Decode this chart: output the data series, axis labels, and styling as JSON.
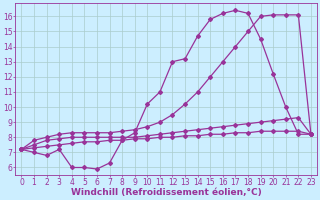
{
  "bg_color": "#cceeff",
  "line_color": "#993399",
  "grid_color": "#aacccc",
  "xlabel": "Windchill (Refroidissement éolien,°C)",
  "xlabel_fontsize": 6.5,
  "tick_fontsize": 5.5,
  "xlim": [
    -0.5,
    23.5
  ],
  "ylim": [
    5.5,
    16.9
  ],
  "yticks": [
    6,
    7,
    8,
    9,
    10,
    11,
    12,
    13,
    14,
    15,
    16
  ],
  "xticks": [
    0,
    1,
    2,
    3,
    4,
    5,
    6,
    7,
    8,
    9,
    10,
    11,
    12,
    13,
    14,
    15,
    16,
    17,
    18,
    19,
    20,
    21,
    22,
    23
  ],
  "line1_x": [
    0,
    1,
    2,
    3,
    4,
    5,
    6,
    7,
    8,
    9,
    10,
    11,
    12,
    13,
    14,
    15,
    16,
    17,
    18,
    19,
    20,
    21,
    22,
    23
  ],
  "line1_y": [
    7.2,
    7.0,
    6.8,
    7.2,
    6.0,
    6.0,
    5.9,
    6.3,
    7.8,
    8.3,
    10.2,
    11.0,
    13.0,
    13.2,
    14.7,
    15.8,
    16.2,
    16.4,
    16.2,
    14.5,
    12.2,
    10.0,
    8.2,
    8.2
  ],
  "line2_x": [
    0,
    1,
    2,
    3,
    4,
    5,
    6,
    7,
    8,
    9,
    10,
    11,
    12,
    13,
    14,
    15,
    16,
    17,
    18,
    19,
    20,
    21,
    22,
    23
  ],
  "line2_y": [
    7.2,
    7.8,
    8.0,
    8.2,
    8.3,
    8.3,
    8.3,
    8.3,
    8.4,
    8.5,
    8.7,
    9.0,
    9.5,
    10.2,
    11.0,
    12.0,
    13.0,
    14.0,
    15.0,
    16.0,
    16.1,
    16.1,
    16.1,
    8.2
  ],
  "line3_x": [
    0,
    1,
    2,
    3,
    4,
    5,
    6,
    7,
    8,
    9,
    10,
    11,
    12,
    13,
    14,
    15,
    16,
    17,
    18,
    19,
    20,
    21,
    22,
    23
  ],
  "line3_y": [
    7.2,
    7.5,
    7.8,
    7.9,
    8.0,
    8.0,
    8.0,
    8.0,
    8.0,
    8.0,
    8.1,
    8.2,
    8.3,
    8.4,
    8.5,
    8.6,
    8.7,
    8.8,
    8.9,
    9.0,
    9.1,
    9.2,
    9.3,
    8.2
  ],
  "line4_x": [
    0,
    1,
    2,
    3,
    4,
    5,
    6,
    7,
    8,
    9,
    10,
    11,
    12,
    13,
    14,
    15,
    16,
    17,
    18,
    19,
    20,
    21,
    22,
    23
  ],
  "line4_y": [
    7.2,
    7.3,
    7.4,
    7.5,
    7.6,
    7.7,
    7.7,
    7.8,
    7.8,
    7.9,
    7.9,
    8.0,
    8.0,
    8.1,
    8.1,
    8.2,
    8.2,
    8.3,
    8.3,
    8.4,
    8.4,
    8.4,
    8.4,
    8.2
  ]
}
